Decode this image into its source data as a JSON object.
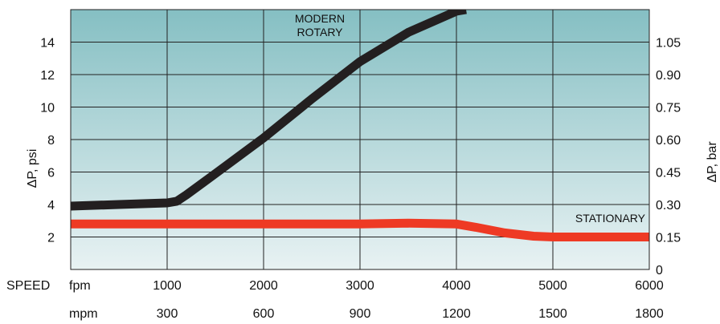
{
  "chart_data": {
    "type": "line",
    "ylabel_left": "ΔP, psi",
    "ylabel_right": "ΔP, bar",
    "x_row_label": "SPEED",
    "x_units_primary": "fpm",
    "x_units_secondary": "mpm",
    "x_ticks_primary": [
      "1000",
      "2000",
      "3000",
      "4000",
      "5000",
      "6000"
    ],
    "x_ticks_secondary": [
      "300",
      "600",
      "900",
      "1200",
      "1500",
      "1800"
    ],
    "y_ticks_left": [
      "2",
      "4",
      "6",
      "8",
      "10",
      "12",
      "14"
    ],
    "y_ticks_right": [
      "0",
      "0.15",
      "0.30",
      "0.45",
      "0.60",
      "0.75",
      "0.90",
      "1.05"
    ],
    "xlim": [
      0,
      6000
    ],
    "ylim": [
      0,
      16
    ],
    "grid": true,
    "series": [
      {
        "name": "MODERN ROTARY",
        "name_lines": [
          "MODERN",
          "ROTARY"
        ],
        "color": "#231f20",
        "x": [
          0,
          500,
          1000,
          1100,
          1200,
          1500,
          2000,
          2500,
          3000,
          3500,
          4000,
          4100
        ],
        "y": [
          3.9,
          4.0,
          4.1,
          4.2,
          4.6,
          5.9,
          8.1,
          10.5,
          12.8,
          14.6,
          15.9,
          16.0
        ]
      },
      {
        "name": "STATIONARY",
        "name_lines": [
          "STATIONARY"
        ],
        "color": "#ee3a24",
        "x": [
          0,
          1000,
          2000,
          3000,
          3500,
          4000,
          4200,
          4500,
          4800,
          5000,
          5500,
          6000
        ],
        "y": [
          2.8,
          2.8,
          2.8,
          2.8,
          2.85,
          2.8,
          2.6,
          2.25,
          2.05,
          2.0,
          2.0,
          2.0
        ]
      }
    ],
    "colors": {
      "background_top": "#85bfc3",
      "background_bottom": "#e8f2f3",
      "grid": "#222222"
    }
  }
}
